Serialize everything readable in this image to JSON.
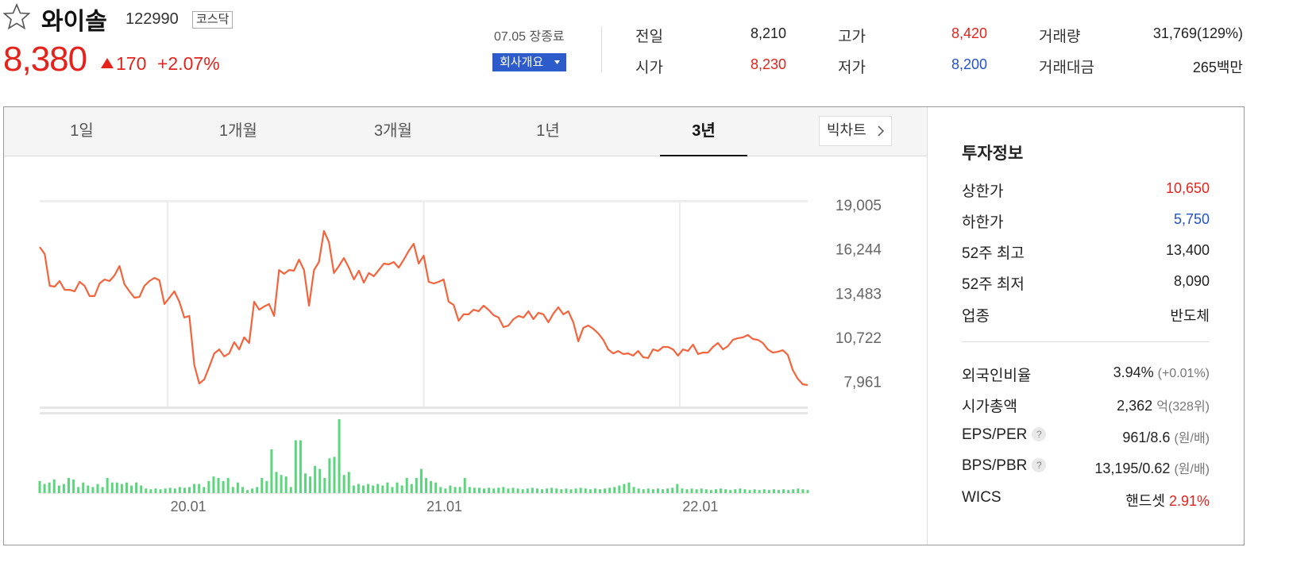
{
  "header": {
    "name": "와이솔",
    "code": "122990",
    "market": "코스닥",
    "price": "8,380",
    "change": "170",
    "change_rate": "+2.07%"
  },
  "status": {
    "date_label": "07.05 장종료",
    "company_button": "회사개요"
  },
  "quotes": [
    {
      "label": "전일",
      "value": "8,210"
    },
    {
      "label": "고가",
      "value": "8,420",
      "color": "#e5231c"
    },
    {
      "label": "거래량",
      "value": "31,769(129%)"
    },
    {
      "label": "시가",
      "value": "8,230",
      "color": "#e5231c"
    },
    {
      "label": "저가",
      "value": "8,200",
      "color": "#2453c3"
    },
    {
      "label": "거래대금",
      "value": "265백만"
    }
  ],
  "tabs": {
    "items": [
      "1일",
      "1개월",
      "3개월",
      "1년",
      "3년"
    ],
    "active": 4,
    "bigchart": "빅차트"
  },
  "invest": {
    "title": "투자정보",
    "rows": [
      {
        "label": "상한가",
        "value": "10,650",
        "color": "#e5231c"
      },
      {
        "label": "하한가",
        "value": "5,750",
        "color": "#2453c3"
      },
      {
        "label": "52주 최고",
        "value": "13,400"
      },
      {
        "label": "52주 최저",
        "value": "8,090"
      },
      {
        "label": "업종",
        "value": "반도체"
      },
      {
        "label": "외국인비율",
        "value": "3.94%",
        "extra": "(+0.01%)"
      },
      {
        "label": "시가총액",
        "value": "2,362",
        "extra": "억(328위)"
      },
      {
        "label": "EPS/PER",
        "help": "?",
        "value": "961/8.6",
        "extra": "(원/배)"
      },
      {
        "label": "BPS/PBR",
        "help": "?",
        "value": "13,195/0.62",
        "extra": "(원/배)"
      },
      {
        "label": "WICS",
        "value": "핸드셋",
        "extra": "2.91%",
        "extra_color": "#e5231c"
      }
    ]
  },
  "chart_data": [
    {
      "type": "line",
      "color": "#f4643c",
      "values": [
        16370,
        15930,
        13940,
        13890,
        14240,
        13690,
        13690,
        13600,
        14190,
        13940,
        13300,
        13300,
        14090,
        14340,
        14240,
        14590,
        15180,
        14040,
        13600,
        13200,
        13250,
        13940,
        14240,
        14440,
        14290,
        12800,
        13200,
        13600,
        12950,
        11960,
        12060,
        8980,
        7840,
        8090,
        8880,
        9720,
        9970,
        9530,
        9720,
        10420,
        9970,
        10720,
        10370,
        12950,
        12450,
        12650,
        12800,
        12060,
        14930,
        14690,
        14930,
        14890,
        15580,
        14930,
        12700,
        14930,
        15430,
        17370,
        16670,
        14740,
        15180,
        15680,
        15080,
        14340,
        14890,
        14140,
        14740,
        14540,
        14930,
        15330,
        15280,
        15430,
        15080,
        15580,
        16130,
        16570,
        15330,
        15830,
        14190,
        14090,
        14190,
        14340,
        12950,
        12750,
        11760,
        12160,
        12160,
        12450,
        12350,
        12700,
        12450,
        12110,
        11960,
        11360,
        11460,
        11860,
        12060,
        11960,
        12350,
        11860,
        12260,
        12160,
        11660,
        12210,
        12600,
        12160,
        12350,
        11660,
        10470,
        11310,
        11460,
        11260,
        10970,
        10570,
        9970,
        9720,
        9870,
        9680,
        9720,
        9580,
        9870,
        9480,
        9430,
        9970,
        9870,
        10120,
        10120,
        9970,
        9580,
        9970,
        9870,
        10270,
        9680,
        9770,
        9770,
        10120,
        10370,
        9970,
        10170,
        10570,
        10670,
        10720,
        10870,
        10620,
        10570,
        10370,
        9970,
        9770,
        9820,
        9920,
        9630,
        8680,
        8140,
        7790,
        7740
      ],
      "ylim": [
        6400,
        19400
      ],
      "yticks": [
        {
          "value": 19005,
          "label": "19,005"
        },
        {
          "value": 16244,
          "label": "16,244"
        },
        {
          "value": 13483,
          "label": "13,483"
        },
        {
          "value": 10722,
          "label": "10,722"
        },
        {
          "value": 7961,
          "label": "7,961"
        }
      ],
      "xlim": [
        2019.5,
        2022.5
      ],
      "xticks": [
        {
          "value": 2020,
          "label": "20.01"
        },
        {
          "value": 2021,
          "label": "21.01"
        },
        {
          "value": 2022,
          "label": "22.01"
        }
      ],
      "xgrid": true
    },
    {
      "type": "bar",
      "color": "#5bd67d",
      "ylim": [
        0,
        100
      ],
      "values": [
        16,
        12,
        14,
        18,
        10,
        12,
        20,
        18,
        8,
        14,
        10,
        8,
        12,
        8,
        20,
        14,
        14,
        12,
        14,
        10,
        14,
        10,
        6,
        5,
        6,
        5,
        6,
        7,
        6,
        8,
        7,
        8,
        12,
        12,
        8,
        16,
        22,
        20,
        16,
        20,
        8,
        14,
        8,
        4,
        6,
        8,
        20,
        16,
        58,
        28,
        24,
        22,
        8,
        70,
        70,
        26,
        22,
        36,
        32,
        20,
        46,
        48,
        98,
        24,
        28,
        10,
        12,
        10,
        12,
        10,
        12,
        10,
        14,
        8,
        14,
        10,
        20,
        12,
        20,
        32,
        20,
        16,
        14,
        8,
        6,
        10,
        8,
        8,
        20,
        8,
        7,
        7,
        6,
        7,
        6,
        7,
        8,
        6,
        7,
        6,
        5,
        6,
        7,
        6,
        5,
        6,
        7,
        6,
        5,
        6,
        5,
        6,
        7,
        6,
        5,
        6,
        5,
        6,
        7,
        8,
        10,
        12,
        14,
        8,
        6,
        5,
        6,
        5,
        6,
        5,
        6,
        7,
        12,
        6,
        5,
        6,
        5,
        6,
        5,
        4,
        5,
        6,
        5,
        4,
        5,
        6,
        5,
        4,
        5,
        4,
        5,
        4,
        5,
        4,
        5,
        4,
        5,
        6,
        5,
        4
      ]
    }
  ]
}
